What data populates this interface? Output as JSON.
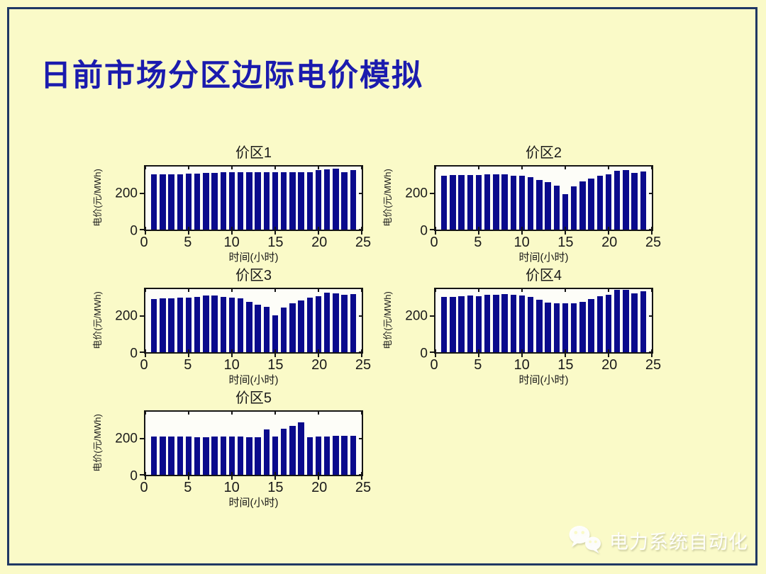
{
  "slide": {
    "title": "日前市场分区边际电价模拟",
    "watermark": {
      "icon": "wechat-logo",
      "text": "电力系统自动化"
    },
    "colors": {
      "background": "#FAFAC8",
      "frame": "#1F3864",
      "title_text": "#1B1BAE",
      "bar": "#0A0A8C",
      "plot_background": "#FDFDF8",
      "axis_text": "#1A1A1A"
    }
  },
  "chart_data": [
    {
      "type": "bar",
      "title": "价区1",
      "xlabel": "时间(小时)",
      "ylabel": "电价(元/MWh)",
      "x": [
        1,
        2,
        3,
        4,
        5,
        6,
        7,
        8,
        9,
        10,
        11,
        12,
        13,
        14,
        15,
        16,
        17,
        18,
        19,
        20,
        21,
        22,
        23,
        24
      ],
      "values": [
        308,
        308,
        308,
        306,
        312,
        312,
        316,
        316,
        318,
        319,
        319,
        317,
        317,
        317,
        317,
        317,
        317,
        317,
        318,
        330,
        336,
        338,
        320,
        332
      ],
      "xlim": [
        0,
        25
      ],
      "ylim": [
        0,
        350
      ],
      "xticks": [
        0,
        5,
        10,
        15,
        20,
        25
      ],
      "yticks": [
        0,
        200
      ],
      "grid": false,
      "legend": null
    },
    {
      "type": "bar",
      "title": "价区2",
      "xlabel": "时间(小时)",
      "ylabel": "电价(元/MWh)",
      "x": [
        1,
        2,
        3,
        4,
        5,
        6,
        7,
        8,
        9,
        10,
        11,
        12,
        13,
        14,
        15,
        16,
        17,
        18,
        19,
        20,
        21,
        22,
        23,
        24
      ],
      "values": [
        299,
        301,
        301,
        301,
        301,
        305,
        308,
        308,
        299,
        299,
        292,
        274,
        262,
        242,
        197,
        241,
        267,
        283,
        300,
        308,
        328,
        329,
        314,
        321
      ],
      "xlim": [
        0,
        25
      ],
      "ylim": [
        0,
        350
      ],
      "xticks": [
        0,
        5,
        10,
        15,
        20,
        25
      ],
      "yticks": [
        0,
        200
      ],
      "grid": false,
      "legend": null
    },
    {
      "type": "bar",
      "title": "价区3",
      "xlabel": "时间(小时)",
      "ylabel": "电价(元/MWh)",
      "x": [
        1,
        2,
        3,
        4,
        5,
        6,
        7,
        8,
        9,
        10,
        11,
        12,
        13,
        14,
        15,
        16,
        17,
        18,
        19,
        20,
        21,
        22,
        23,
        24
      ],
      "values": [
        294,
        297,
        297,
        301,
        301,
        305,
        313,
        313,
        308,
        304,
        297,
        279,
        263,
        251,
        206,
        247,
        270,
        286,
        301,
        310,
        329,
        328,
        317,
        323
      ],
      "xlim": [
        0,
        25
      ],
      "ylim": [
        0,
        350
      ],
      "xticks": [
        0,
        5,
        10,
        15,
        20,
        25
      ],
      "yticks": [
        0,
        200
      ],
      "grid": false,
      "legend": null
    },
    {
      "type": "bar",
      "title": "价区4",
      "xlabel": "时间(小时)",
      "ylabel": "电价(元/MWh)",
      "x": [
        1,
        2,
        3,
        4,
        5,
        6,
        7,
        8,
        9,
        10,
        11,
        12,
        13,
        14,
        15,
        16,
        17,
        18,
        19,
        20,
        21,
        22,
        23,
        24
      ],
      "values": [
        308,
        308,
        312,
        313,
        312,
        317,
        320,
        322,
        318,
        313,
        307,
        290,
        277,
        272,
        270,
        271,
        279,
        295,
        312,
        319,
        345,
        345,
        328,
        338
      ],
      "xlim": [
        0,
        25
      ],
      "ylim": [
        0,
        350
      ],
      "xticks": [
        0,
        5,
        10,
        15,
        20,
        25
      ],
      "yticks": [
        0,
        200
      ],
      "grid": false,
      "legend": null
    },
    {
      "type": "bar",
      "title": "价区5",
      "xlabel": "时间(小时)",
      "ylabel": "电价(元/MWh)",
      "x": [
        1,
        2,
        3,
        4,
        5,
        6,
        7,
        8,
        9,
        10,
        11,
        12,
        13,
        14,
        15,
        16,
        17,
        18,
        19,
        20,
        21,
        22,
        23,
        24
      ],
      "values": [
        212,
        211,
        211,
        211,
        211,
        210,
        210,
        212,
        212,
        212,
        211,
        210,
        210,
        250,
        214,
        255,
        272,
        290,
        210,
        211,
        212,
        215,
        215,
        215
      ],
      "xlim": [
        0,
        25
      ],
      "ylim": [
        0,
        350
      ],
      "xticks": [
        0,
        5,
        10,
        15,
        20,
        25
      ],
      "yticks": [
        0,
        200
      ],
      "grid": false,
      "legend": null
    }
  ]
}
